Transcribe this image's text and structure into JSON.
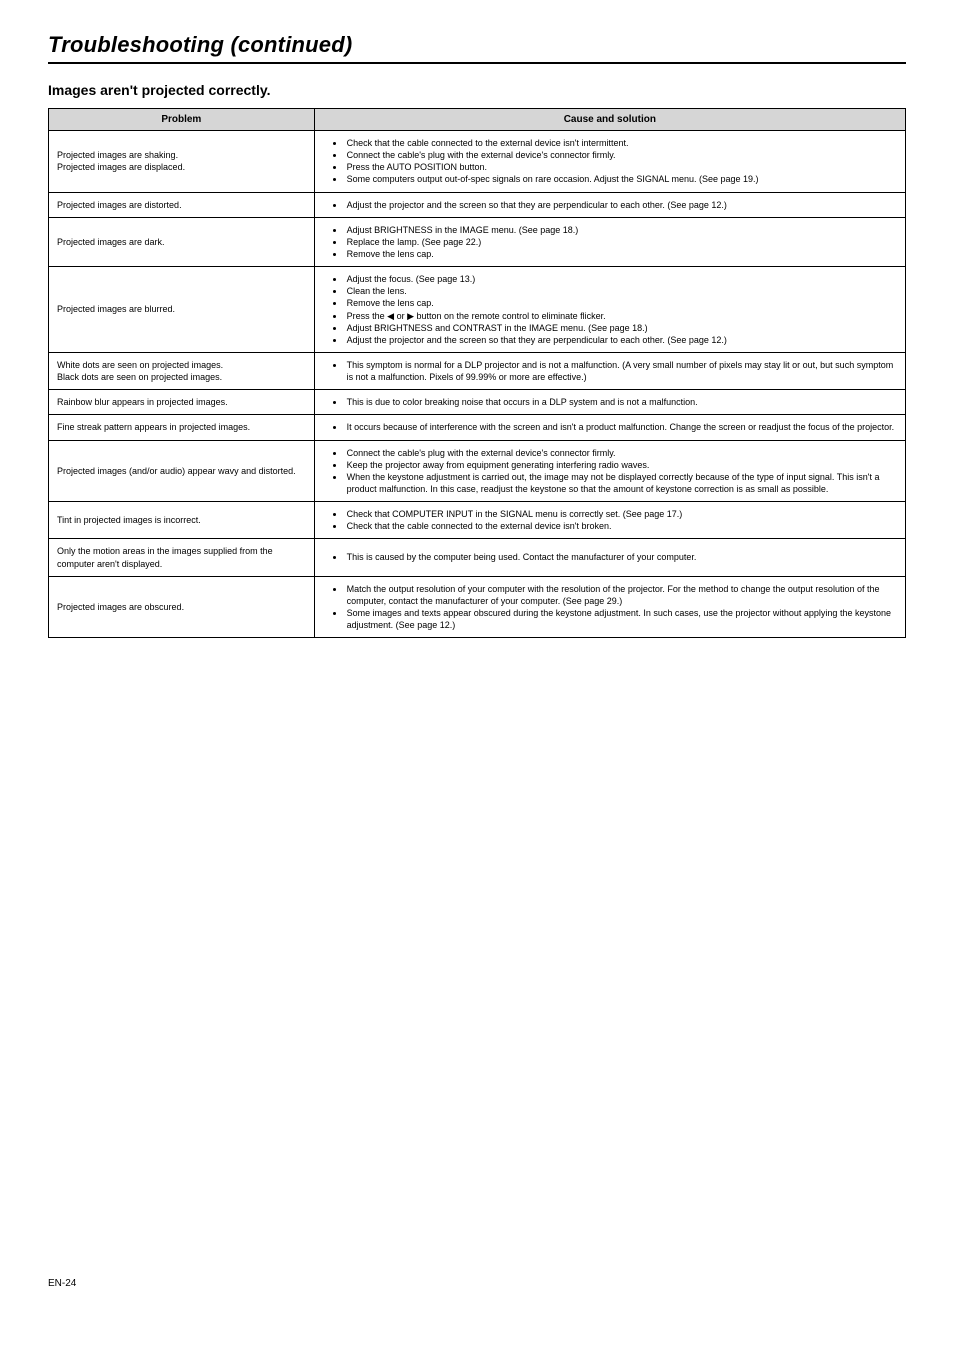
{
  "header": {
    "title": "Troubleshooting (continued)",
    "subtitle": "Images aren't projected correctly."
  },
  "table": {
    "col_problem": "Problem",
    "col_cause": "Cause and solution",
    "rows": [
      {
        "problem_lines": [
          "Projected images are shaking.",
          "Projected images are displaced."
        ],
        "causes": [
          "Check that the cable connected to the external device isn't intermittent.",
          "Connect the cable's plug with the external device's connector firmly.",
          "Press the AUTO POSITION button.",
          "Some computers output out-of-spec signals on rare occasion. Adjust the SIGNAL menu. (See page 19.)"
        ]
      },
      {
        "problem_lines": [
          "Projected images are distorted."
        ],
        "causes": [
          "Adjust the projector and the screen so that they are perpendicular to each other. (See page 12.)"
        ]
      },
      {
        "problem_lines": [
          "Projected images are dark."
        ],
        "causes": [
          "Adjust BRIGHTNESS in the IMAGE menu. (See page 18.)",
          "Replace the lamp. (See page 22.)",
          "Remove the lens cap."
        ]
      },
      {
        "problem_lines": [
          "Projected images are blurred."
        ],
        "causes": [
          "Adjust the focus. (See page 13.)",
          "Clean the lens.",
          "Remove the lens cap.",
          "Press the ◀ or ▶ button on the remote control to eliminate flicker.",
          "Adjust BRIGHTNESS and CONTRAST in the IMAGE menu. (See page 18.)",
          "Adjust the projector and the screen so that they are perpendicular to each other. (See page 12.)"
        ]
      },
      {
        "problem_lines": [
          "White dots are seen on projected images.",
          "Black dots are seen on projected images."
        ],
        "causes": [
          "This symptom is normal for a DLP projector and is not a malfunction. (A very small number of pixels may stay lit or out, but such symptom is not a malfunction. Pixels of 99.99% or more are effective.)"
        ]
      },
      {
        "problem_lines": [
          "Rainbow blur appears in projected images."
        ],
        "causes": [
          "This is due to color breaking noise that occurs in a DLP system and is not a malfunction."
        ]
      },
      {
        "problem_lines": [
          "Fine streak pattern appears in projected images."
        ],
        "causes": [
          "It occurs because of interference with the screen and isn't a product malfunction. Change the screen or readjust the focus of the projector."
        ]
      },
      {
        "problem_lines": [
          "Projected images (and/or audio) appear wavy and distorted."
        ],
        "causes": [
          "Connect the cable's plug with the external device's connector firmly.",
          "Keep the projector away from equipment generating interfering radio waves.",
          "When the keystone adjustment is carried out, the image may not be displayed correctly because of the type of input signal. This isn't a product malfunction. In this case, readjust the keystone so that the amount of keystone correction is as small as possible."
        ]
      },
      {
        "problem_lines": [
          "Tint in projected images is incorrect."
        ],
        "causes": [
          "Check that COMPUTER INPUT in the SIGNAL menu is correctly set. (See page 17.)",
          "Check that the cable connected to the external device isn't broken."
        ]
      },
      {
        "problem_lines": [
          "Only the motion areas in the images supplied from the computer aren't displayed."
        ],
        "causes": [
          "This is caused by the computer being used. Contact the manufacturer of your computer."
        ]
      },
      {
        "problem_lines": [
          "Projected images are obscured."
        ],
        "causes": [
          "Match the output resolution of your computer with the resolution of the projector.  For the method to change the output resolution of the computer, contact the manufacturer of your computer. (See page 29.)",
          "Some images and texts appear obscured during the keystone adjustment. In such cases, use the projector without applying the keystone adjustment. (See page 12.)"
        ]
      }
    ]
  },
  "footer": {
    "page": "EN-24"
  }
}
